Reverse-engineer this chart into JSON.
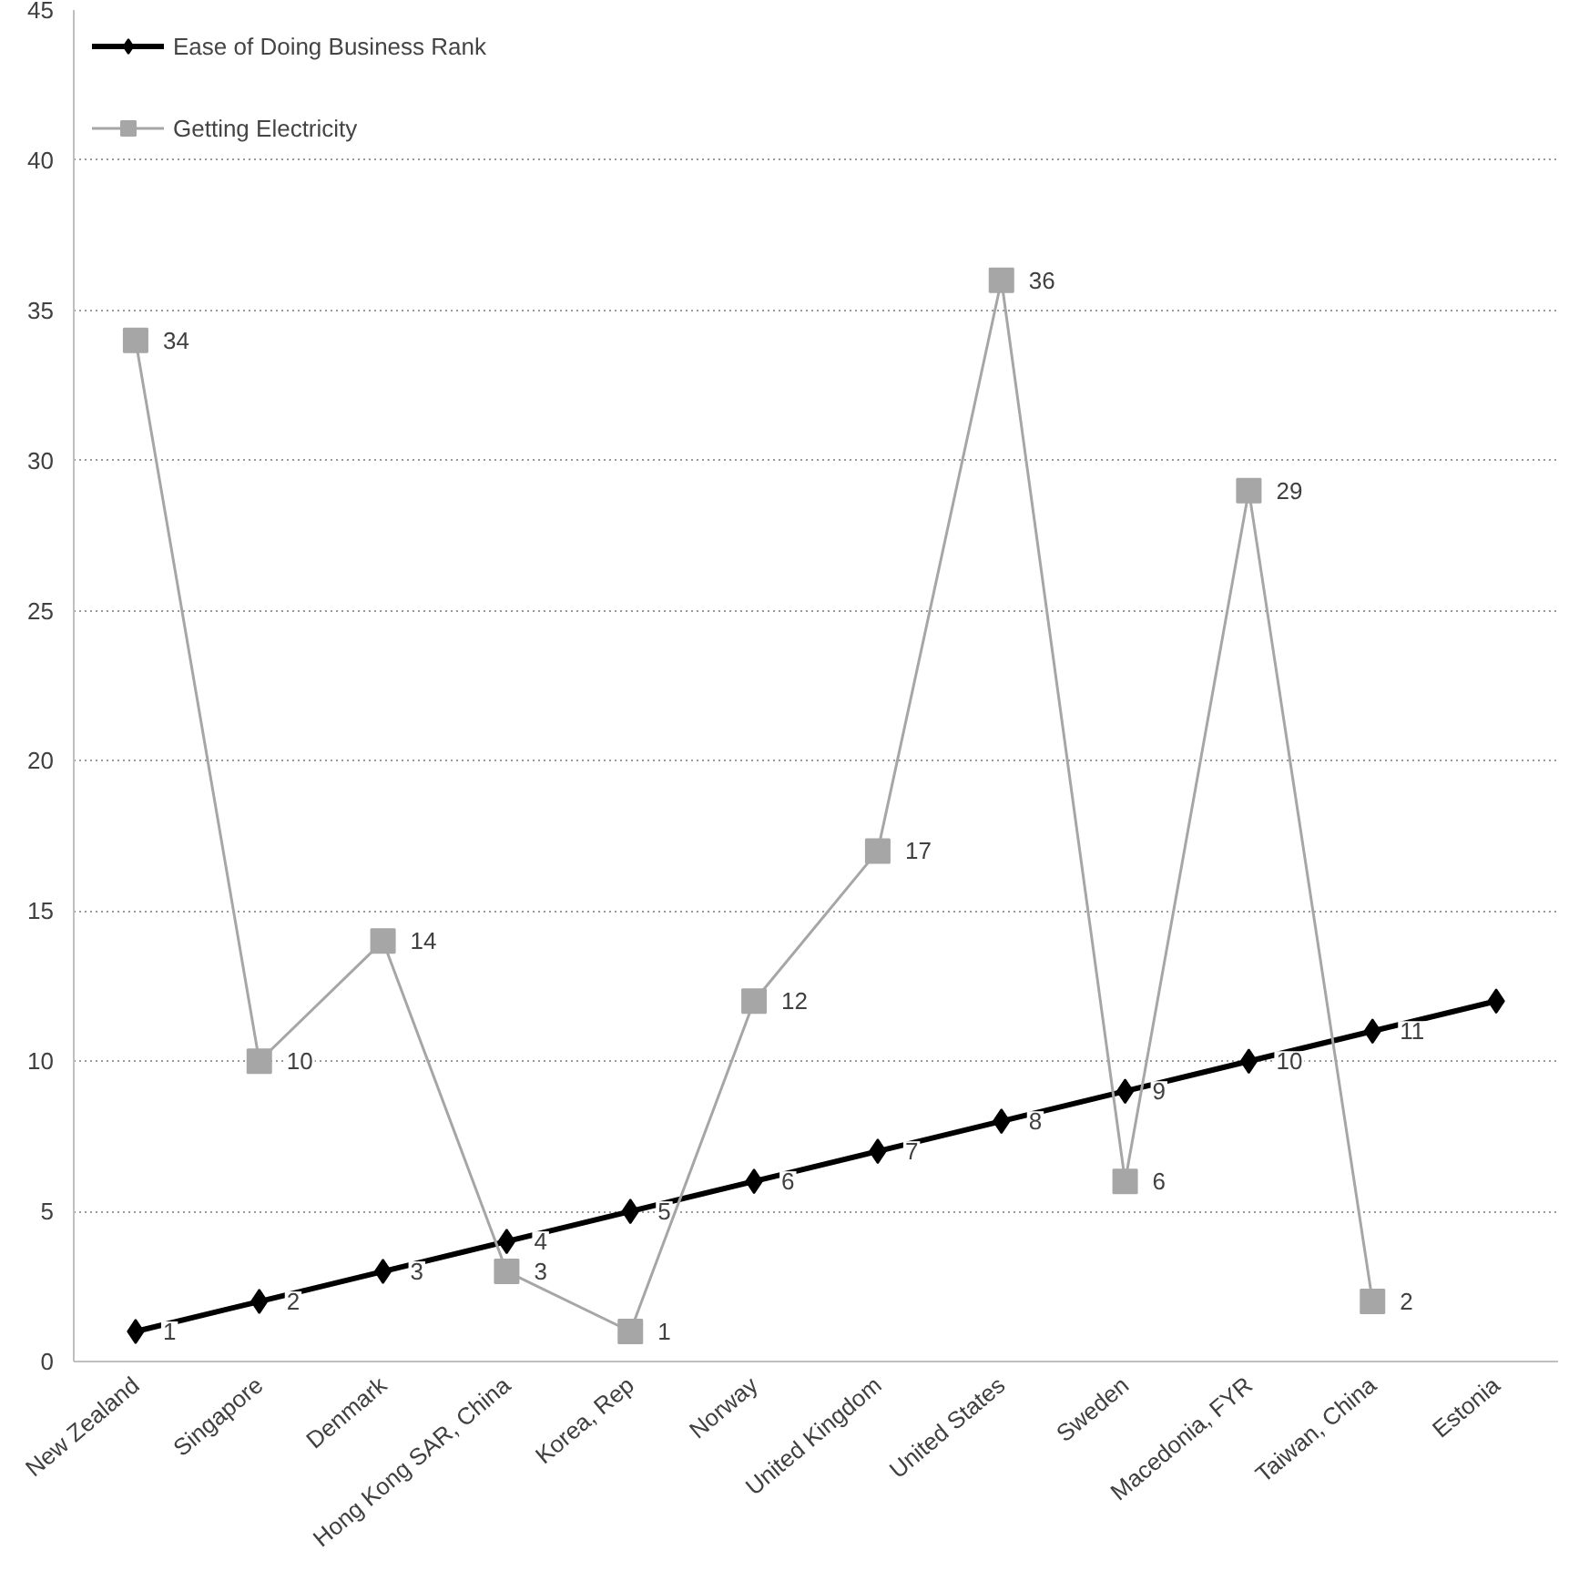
{
  "chart_data": {
    "type": "line",
    "categories": [
      "New Zealand",
      "Singapore",
      "Denmark",
      "Hong Kong SAR, China",
      "Korea, Rep",
      "Norway",
      "United Kingdom",
      "United States",
      "Sweden",
      "Macedonia, FYR",
      "Taiwan, China",
      "Estonia"
    ],
    "series": [
      {
        "name": "Ease of Doing Business Rank",
        "color": "#000000",
        "marker": "diamond",
        "values": [
          1,
          2,
          3,
          4,
          5,
          6,
          7,
          8,
          9,
          10,
          11,
          12
        ],
        "value_labels": [
          "1",
          "2",
          "3",
          "4",
          "5",
          "6",
          "7",
          "8",
          "9",
          "10",
          "11",
          null
        ]
      },
      {
        "name": "Getting Electricity",
        "color": "#a6a6a6",
        "marker": "square",
        "values": [
          34,
          10,
          14,
          3,
          1,
          12,
          17,
          36,
          6,
          29,
          2,
          null
        ],
        "value_labels": [
          "34",
          "10",
          "14",
          "3",
          "1",
          "12",
          "17",
          "36",
          "6",
          "29",
          "2",
          null
        ]
      }
    ],
    "ylim": [
      0,
      45
    ],
    "yticks": [
      0,
      5,
      10,
      15,
      20,
      25,
      30,
      35,
      40,
      45
    ],
    "grid": "y",
    "legend": "top left"
  }
}
